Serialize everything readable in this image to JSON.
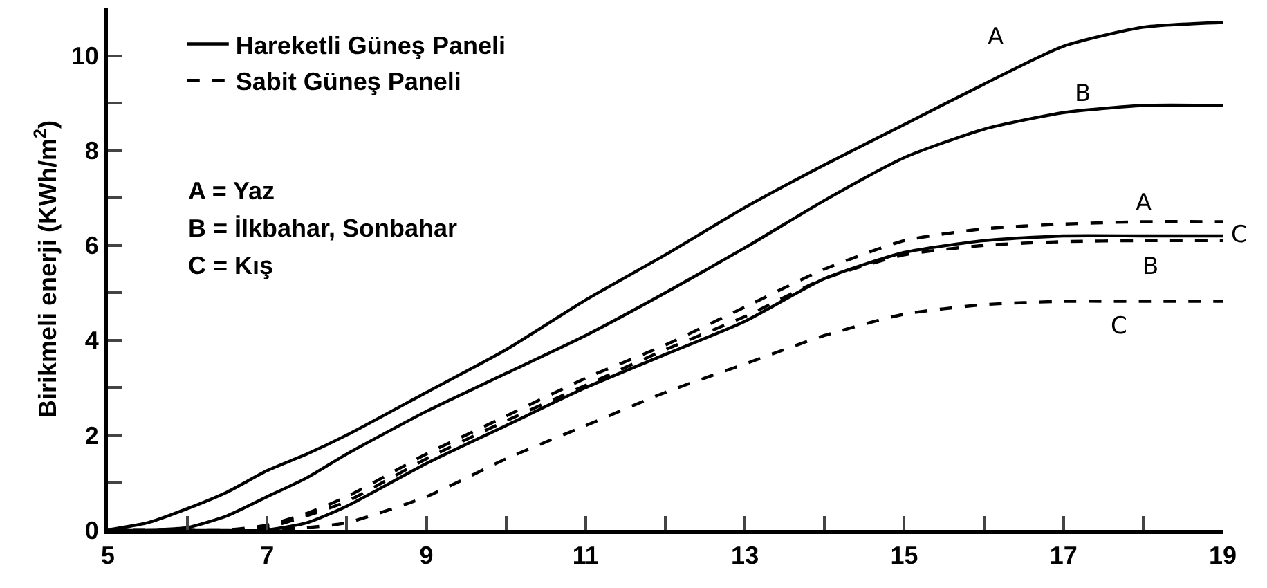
{
  "chart_data": {
    "type": "line",
    "ylabel": "Birikmeli enerji (KWh/m$^{2}$)",
    "x": [
      5,
      5.5,
      6,
      6.5,
      7,
      7.5,
      8,
      9,
      10,
      11,
      12,
      13,
      14,
      15,
      16,
      17,
      18,
      19
    ],
    "series": [
      {
        "name": "Hareketli Güneş Paneli",
        "color": "#000000",
        "line_style": "solid",
        "values": [
          0,
          0.15,
          0.45,
          0.8,
          1.25,
          1.6,
          2.0,
          2.9,
          3.8,
          4.85,
          5.8,
          6.8,
          7.7,
          8.55,
          9.4,
          10.2,
          10.6,
          10.7
        ]
      },
      {
        "color": "#000000",
        "line_style": "solid",
        "values": [
          0,
          0,
          0.05,
          0.3,
          0.7,
          1.1,
          1.6,
          2.5,
          3.3,
          4.1,
          5.0,
          5.95,
          6.95,
          7.85,
          8.45,
          8.8,
          8.95,
          8.95
        ]
      },
      {
        "color": "#000000",
        "line_style": "solid",
        "values": [
          0,
          0,
          0,
          0,
          0,
          0.15,
          0.5,
          1.4,
          2.2,
          3.0,
          3.7,
          4.4,
          5.3,
          5.85,
          6.1,
          6.2,
          6.2,
          6.2
        ]
      },
      {
        "name": "Sabit Güneş Paneli",
        "color": "#000000",
        "line_style": "dashed",
        "values": [
          0,
          0,
          0,
          0,
          0.1,
          0.35,
          0.7,
          1.6,
          2.4,
          3.2,
          3.9,
          4.7,
          5.5,
          6.1,
          6.35,
          6.45,
          6.5,
          6.5
        ]
      },
      {
        "color": "#000000",
        "line_style": "dashed",
        "values": [
          0,
          0,
          0,
          0,
          0.05,
          0.3,
          0.6,
          1.5,
          2.3,
          3.05,
          3.8,
          4.5,
          5.3,
          5.8,
          6.0,
          6.08,
          6.1,
          6.1
        ]
      },
      {
        "color": "#000000",
        "line_style": "dashed",
        "values": [
          0,
          0,
          0,
          0,
          0,
          0.05,
          0.15,
          0.7,
          1.5,
          2.2,
          2.9,
          3.5,
          4.1,
          4.55,
          4.75,
          4.82,
          4.82,
          4.82
        ]
      }
    ],
    "xlim": [
      5,
      19
    ],
    "xticks": [
      5,
      {
        "value": 6,
        "label": null
      },
      7,
      {
        "value": 8,
        "label": null
      },
      9,
      {
        "value": 10,
        "label": null
      },
      11,
      {
        "value": 12,
        "label": null
      },
      13,
      {
        "value": 14,
        "label": null
      },
      15,
      {
        "value": 16,
        "label": null
      },
      17,
      {
        "value": 18,
        "label": null
      },
      19
    ],
    "ylim": [
      0,
      11
    ],
    "yticks": [
      0,
      {
        "value": 1,
        "label": null
      },
      2,
      {
        "value": 3,
        "label": null
      },
      4,
      {
        "value": 5,
        "label": null
      },
      6,
      {
        "value": 7,
        "label": null
      },
      8,
      {
        "value": 9,
        "label": null
      },
      10
    ],
    "grid": false,
    "legend": "top left",
    "marker": "none",
    "annotations": [
      "A = Yaz",
      "B = İlkbahar, Sonbahar",
      "C = Kış",
      "A",
      "B",
      "C",
      "A",
      "B",
      "C"
    ]
  }
}
